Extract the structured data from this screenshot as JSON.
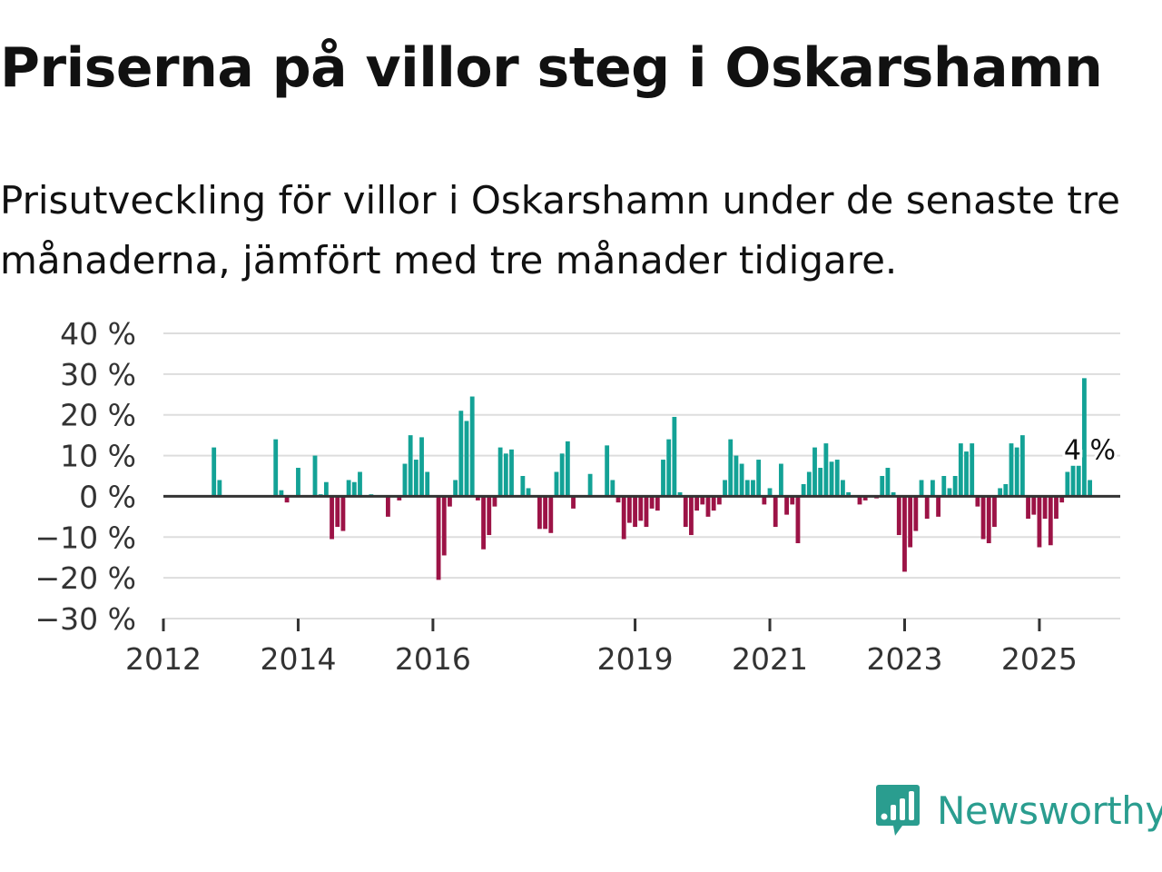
{
  "title": "Priserna på villor steg i Oskarshamn",
  "subtitle": "Prisutveckling för villor i Oskarshamn under de senaste tre månaderna, jämfört med tre månader tidigare.",
  "logo": {
    "text": "Newsworthy",
    "icon": "newsworthy-logo-icon",
    "color": "#2a9d8f"
  },
  "colors": {
    "positive": "#13a296",
    "negative": "#9c1346",
    "grid": "#dddddd",
    "axis": "#333333"
  },
  "chart_data": {
    "type": "bar",
    "title": "Priserna på villor steg i Oskarshamn",
    "xlabel": "",
    "ylabel": "",
    "unit": "%",
    "ylim": [
      -30,
      40
    ],
    "yticks": [
      -30,
      -20,
      -10,
      0,
      10,
      20,
      30,
      40
    ],
    "ytick_labels": [
      "−30 %",
      "−20 %",
      "−10 %",
      "0 %",
      "10 %",
      "20 %",
      "30 %",
      "40 %"
    ],
    "xlim": [
      2012.0,
      2026.2
    ],
    "xticks": [
      2012,
      2014,
      2016,
      2019,
      2021,
      2023,
      2025
    ],
    "xtick_labels": [
      "2012",
      "2014",
      "2016",
      "2019",
      "2021",
      "2023",
      "2025"
    ],
    "annotation": {
      "label": "4 %",
      "x": 2025.6667,
      "value": 4
    },
    "start": 2012.0,
    "step": 0.083333,
    "values": [
      null,
      null,
      null,
      null,
      null,
      null,
      null,
      null,
      null,
      12,
      4,
      null,
      null,
      null,
      null,
      null,
      null,
      null,
      null,
      null,
      14,
      1.5,
      -1.5,
      null,
      7,
      null,
      null,
      10,
      0.5,
      3.5,
      -10.5,
      -7.5,
      -8.5,
      4,
      3.5,
      6,
      null,
      0.5,
      null,
      null,
      -5,
      null,
      -1,
      8,
      15,
      9,
      14.5,
      6,
      null,
      -20.5,
      -14.5,
      -2.5,
      4,
      21,
      18.5,
      24.5,
      -1,
      -13,
      -9.5,
      -2.5,
      12,
      10.5,
      11.5,
      null,
      5,
      2,
      null,
      -8,
      -8,
      -9,
      6,
      10.5,
      13.5,
      -3,
      null,
      null,
      5.5,
      null,
      null,
      12.5,
      4,
      -1.5,
      -10.5,
      -6.5,
      -7.5,
      -6,
      -7.5,
      -3,
      -3.5,
      9,
      14,
      19.5,
      1,
      -7.5,
      -9.5,
      -3.5,
      -2,
      -5,
      -3.5,
      -2,
      4,
      14,
      10,
      8,
      4,
      4,
      9,
      -2,
      2,
      -7.5,
      8,
      -4.5,
      -2,
      -11.5,
      3,
      6,
      12,
      7,
      13,
      8.5,
      9,
      4,
      1,
      null,
      -2,
      -1,
      null,
      -0.5,
      5,
      7,
      1,
      -9.5,
      -18.5,
      -12.5,
      -8.5,
      4,
      -5.5,
      4,
      -5,
      5,
      2,
      5,
      13,
      11,
      13,
      -2.5,
      -10.5,
      -11.5,
      -7.5,
      2,
      3,
      13,
      12,
      15,
      -5.5,
      -4.5,
      -12.5,
      -5.5,
      -12,
      -5.5,
      -1.5,
      6,
      7.5,
      7.5,
      29,
      4,
      null,
      null
    ]
  }
}
